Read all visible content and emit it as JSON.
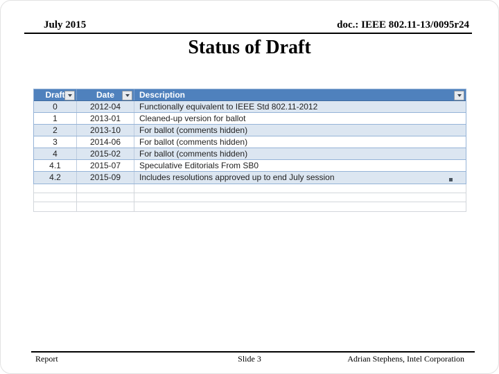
{
  "slide": {
    "header_left": "July 2015",
    "header_right": "doc.: IEEE 802.11-13/0095r24",
    "title": "Status of Draft",
    "footer_left": "Report",
    "footer_center": "Slide 3",
    "footer_right": "Adrian Stephens, Intel Corporation"
  },
  "table": {
    "columns": [
      {
        "label": "Draft",
        "filter_icon": "filter-arrow-icon"
      },
      {
        "label": "Date",
        "filter_icon": "filter-arrow-icon"
      },
      {
        "label": "Description",
        "filter_icon": "filter-arrow-icon"
      }
    ],
    "rows": [
      {
        "draft": "0",
        "date": "2012-04",
        "description": "Functionally equivalent to IEEE Std 802.11-2012"
      },
      {
        "draft": "1",
        "date": "2013-01",
        "description": "Cleaned-up version for ballot"
      },
      {
        "draft": "2",
        "date": "2013-10",
        "description": "For ballot (comments hidden)"
      },
      {
        "draft": "3",
        "date": "2014-06",
        "description": "For ballot (comments hidden)"
      },
      {
        "draft": "4",
        "date": "2015-02",
        "description": "For ballot (comments hidden)"
      },
      {
        "draft": "4.1",
        "date": "2015-07",
        "description": "Speculative Editorials From SB0"
      },
      {
        "draft": "4.2",
        "date": "2015-09",
        "description": "Includes resolutions approved up to end July session"
      }
    ],
    "empty_row_count": 3,
    "colors": {
      "header_bg": "#4F81BD",
      "header_text": "#FFFFFF",
      "band_row_bg": "#DCE6F1",
      "plain_row_bg": "#FFFFFF",
      "data_border": "#95B3D7",
      "grid_border": "#D2D6DB"
    }
  }
}
